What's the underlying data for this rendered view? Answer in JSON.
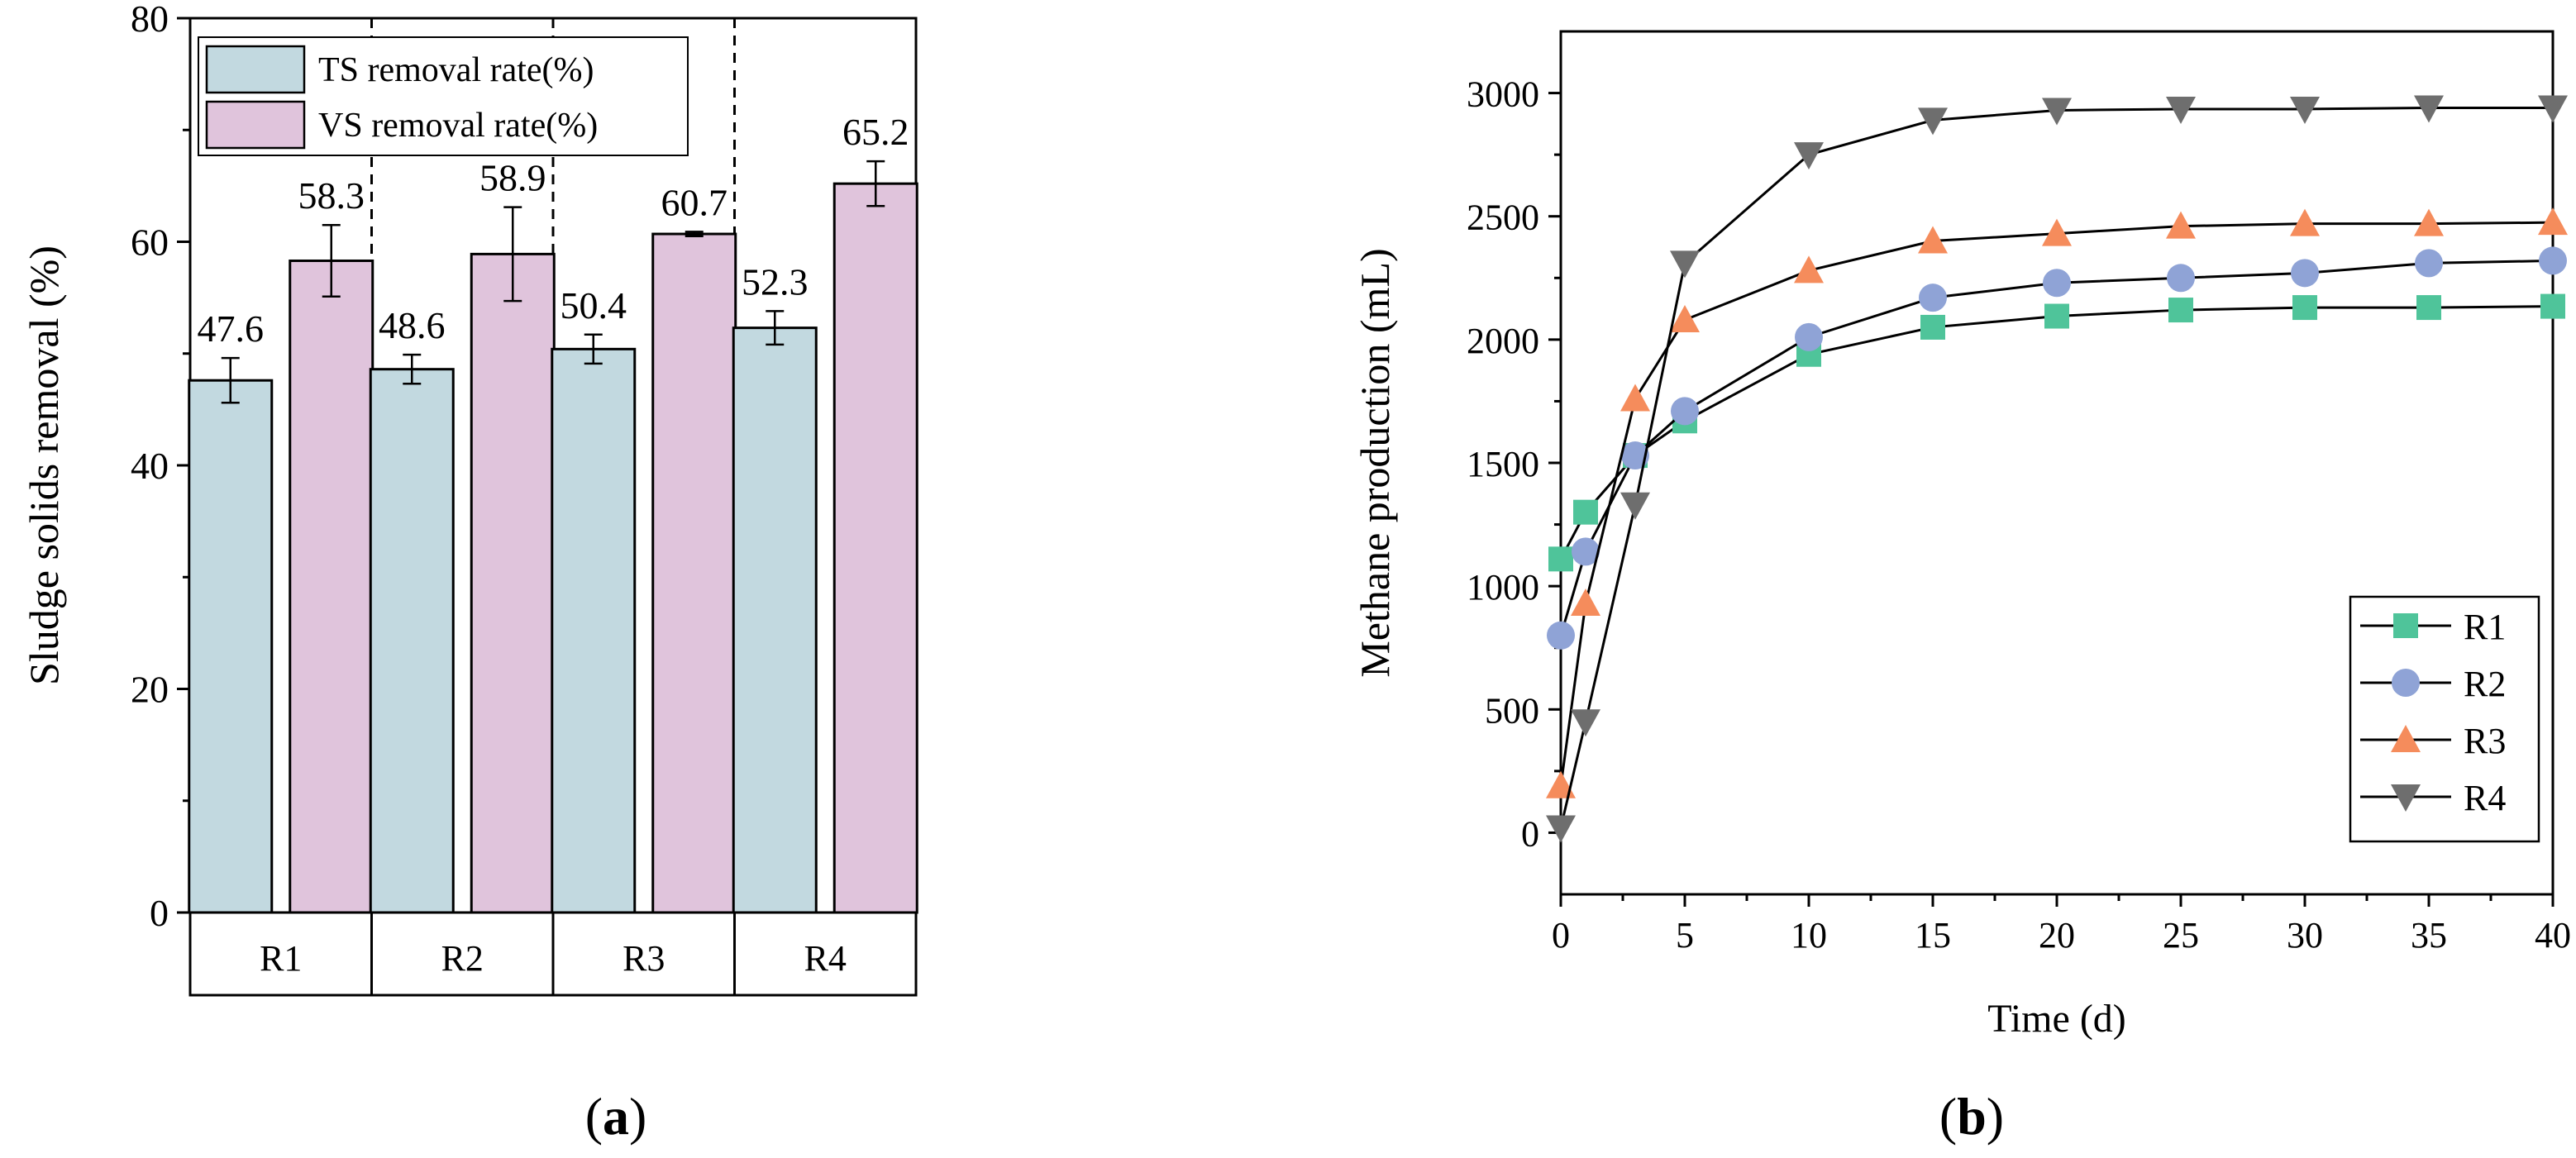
{
  "chart_data": [
    {
      "panel": "a",
      "panel_label": "(a)",
      "type": "bar",
      "categories": [
        "R1",
        "R2",
        "R3",
        "R4"
      ],
      "ylabel": "Sludge solids removal (%)",
      "ylim": [
        0,
        80
      ],
      "yticks": [
        0,
        20,
        40,
        60,
        80
      ],
      "legend_position": "top-left",
      "series": [
        {
          "name": "TS removal rate(%)",
          "color": "#c2d9e0",
          "values": [
            47.6,
            48.6,
            50.4,
            52.3
          ],
          "errors": [
            2.0,
            1.3,
            1.3,
            1.5
          ],
          "labels": [
            "47.6",
            "48.6",
            "50.4",
            "52.3"
          ]
        },
        {
          "name": "VS removal rate(%)",
          "color": "#e0c4dc",
          "values": [
            58.3,
            58.9,
            60.7,
            65.2
          ],
          "errors": [
            3.2,
            4.2,
            0.2,
            2.0
          ],
          "labels": [
            "58.3",
            "58.9",
            "60.7",
            "65.2"
          ]
        }
      ]
    },
    {
      "panel": "b",
      "panel_label": "(b)",
      "type": "line",
      "xlabel": "Time (d)",
      "ylabel": "Methane production (mL)",
      "xlim": [
        0,
        40
      ],
      "ylim": [
        -250,
        3250
      ],
      "xticks": [
        0,
        5,
        10,
        15,
        20,
        25,
        30,
        35,
        40
      ],
      "yticks": [
        0,
        500,
        1000,
        1500,
        2000,
        2500,
        3000
      ],
      "legend_position": "bottom-right",
      "x": [
        0,
        1,
        3,
        5,
        10,
        15,
        20,
        25,
        30,
        35,
        40
      ],
      "series": [
        {
          "name": "R1",
          "marker": "square",
          "color": "#4fc49a",
          "values": [
            1110,
            1300,
            1530,
            1670,
            1940,
            2050,
            2095,
            2120,
            2130,
            2130,
            2135
          ]
        },
        {
          "name": "R2",
          "marker": "circle",
          "color": "#8fa3d6",
          "values": [
            800,
            1140,
            1530,
            1710,
            2010,
            2170,
            2230,
            2250,
            2270,
            2310,
            2320
          ]
        },
        {
          "name": "R3",
          "marker": "triangle-up",
          "color": "#f58c5c",
          "values": [
            190,
            930,
            1760,
            2080,
            2280,
            2400,
            2430,
            2460,
            2470,
            2470,
            2475
          ]
        },
        {
          "name": "R4",
          "marker": "triangle-down",
          "color": "#6e6e6e",
          "values": [
            20,
            450,
            1330,
            2310,
            2750,
            2890,
            2930,
            2935,
            2935,
            2940,
            2940
          ]
        }
      ]
    }
  ]
}
